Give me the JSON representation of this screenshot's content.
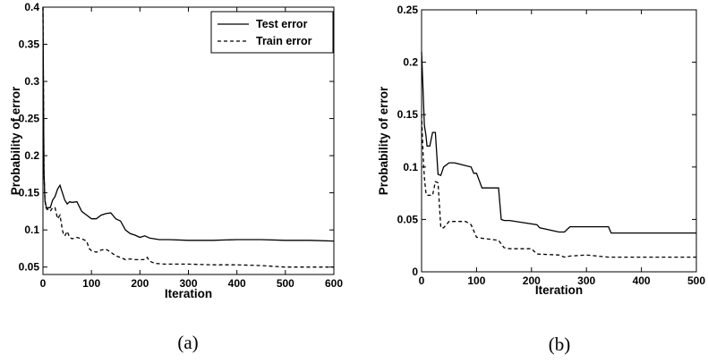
{
  "chart_data": [
    {
      "type": "line",
      "caption": "(a)",
      "xlabel": "Iteration",
      "ylabel": "Probability of error",
      "xlim": [
        0,
        600
      ],
      "ylim": [
        0.04,
        0.4
      ],
      "xticks": [
        0,
        100,
        200,
        300,
        400,
        500,
        600
      ],
      "yticks": [
        0.05,
        0.1,
        0.15,
        0.2,
        0.25,
        0.3,
        0.35,
        0.4
      ],
      "ytick_labels": [
        "0.05",
        "0.1",
        "0.15",
        "0.2",
        "0.25",
        "0.3",
        "0.35",
        "0.4"
      ],
      "legend": "top-right",
      "grid": false,
      "series": [
        {
          "name": "Test error",
          "style": "solid",
          "x": [
            0,
            2,
            4,
            6,
            8,
            10,
            15,
            20,
            25,
            30,
            35,
            40,
            45,
            50,
            55,
            60,
            70,
            80,
            90,
            100,
            110,
            120,
            130,
            140,
            150,
            160,
            170,
            180,
            190,
            200,
            210,
            220,
            230,
            240,
            260,
            300,
            350,
            400,
            450,
            500,
            550,
            600
          ],
          "y": [
            0.4,
            0.18,
            0.14,
            0.133,
            0.128,
            0.13,
            0.13,
            0.14,
            0.145,
            0.155,
            0.16,
            0.15,
            0.14,
            0.135,
            0.138,
            0.137,
            0.138,
            0.125,
            0.12,
            0.115,
            0.115,
            0.12,
            0.122,
            0.123,
            0.115,
            0.112,
            0.1,
            0.095,
            0.093,
            0.09,
            0.092,
            0.089,
            0.088,
            0.087,
            0.087,
            0.086,
            0.086,
            0.087,
            0.087,
            0.086,
            0.086,
            0.085
          ]
        },
        {
          "name": "Train error",
          "style": "dashed",
          "x": [
            0,
            2,
            4,
            6,
            10,
            15,
            20,
            25,
            30,
            35,
            40,
            42,
            45,
            50,
            55,
            60,
            70,
            80,
            90,
            95,
            100,
            110,
            120,
            130,
            140,
            150,
            160,
            170,
            180,
            190,
            200,
            210,
            215,
            220,
            230,
            250,
            300,
            350,
            400,
            450,
            500,
            550,
            600
          ],
          "y": [
            0.4,
            0.18,
            0.14,
            0.13,
            0.128,
            0.125,
            0.13,
            0.13,
            0.115,
            0.12,
            0.1,
            0.095,
            0.092,
            0.098,
            0.09,
            0.088,
            0.09,
            0.088,
            0.085,
            0.075,
            0.072,
            0.07,
            0.073,
            0.074,
            0.07,
            0.065,
            0.063,
            0.06,
            0.061,
            0.06,
            0.06,
            0.06,
            0.063,
            0.058,
            0.055,
            0.054,
            0.054,
            0.053,
            0.053,
            0.052,
            0.05,
            0.05,
            0.05
          ]
        }
      ]
    },
    {
      "type": "line",
      "caption": "(b)",
      "xlabel": "Iteration",
      "ylabel": "Probability of error",
      "xlim": [
        0,
        500
      ],
      "ylim": [
        0,
        0.25
      ],
      "xticks": [
        0,
        100,
        200,
        300,
        400,
        500
      ],
      "yticks": [
        0,
        0.05,
        0.1,
        0.15,
        0.2,
        0.25
      ],
      "ytick_labels": [
        "0",
        "0.05",
        "0.1",
        "0.15",
        "0.2",
        "0.25"
      ],
      "grid": false,
      "series": [
        {
          "style": "solid",
          "x": [
            0,
            3,
            5,
            8,
            10,
            15,
            20,
            25,
            30,
            35,
            40,
            50,
            60,
            90,
            95,
            100,
            110,
            140,
            145,
            150,
            160,
            210,
            215,
            250,
            260,
            270,
            340,
            345,
            500
          ],
          "y": [
            0.21,
            0.17,
            0.14,
            0.13,
            0.12,
            0.12,
            0.133,
            0.133,
            0.093,
            0.092,
            0.1,
            0.104,
            0.104,
            0.1,
            0.094,
            0.094,
            0.08,
            0.08,
            0.05,
            0.049,
            0.049,
            0.045,
            0.042,
            0.038,
            0.038,
            0.043,
            0.043,
            0.037,
            0.037
          ]
        },
        {
          "style": "dashed",
          "x": [
            0,
            3,
            5,
            8,
            10,
            20,
            25,
            30,
            35,
            40,
            50,
            60,
            80,
            90,
            100,
            110,
            140,
            150,
            160,
            200,
            210,
            250,
            260,
            270,
            300,
            340,
            500
          ],
          "y": [
            0.15,
            0.11,
            0.09,
            0.075,
            0.073,
            0.073,
            0.086,
            0.085,
            0.042,
            0.042,
            0.048,
            0.048,
            0.048,
            0.045,
            0.033,
            0.032,
            0.03,
            0.023,
            0.022,
            0.022,
            0.017,
            0.016,
            0.014,
            0.015,
            0.016,
            0.014,
            0.014
          ]
        }
      ]
    }
  ]
}
